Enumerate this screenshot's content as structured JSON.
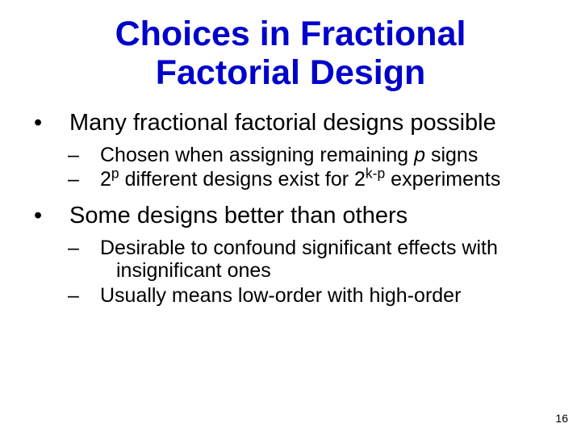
{
  "title_fontsize": 43,
  "title_color": "#0000cc",
  "title_font": "Comic Sans MS",
  "body_fontsize_l1": 29,
  "body_fontsize_l2": 25,
  "body_color": "#000000",
  "background_color": "#ffffff",
  "page_number": "16",
  "title_line1": "Choices in Fractional",
  "title_line2": "Factorial Design",
  "bullets": {
    "b1": "Many fractional factorial designs possible",
    "b1_s1_pre": "Chosen when assigning remaining ",
    "b1_s1_p": "p",
    "b1_s1_post": " signs",
    "b1_s2_a": "2",
    "b1_s2_sup1": "p",
    "b1_s2_b": " different designs exist for 2",
    "b1_s2_sup2": "k-p",
    "b1_s2_c": " experiments",
    "b2": "Some designs better than others",
    "b2_s1": "Desirable to confound significant effects with insignificant ones",
    "b2_s2": "Usually means low-order with high-order"
  },
  "symbols": {
    "bullet": "•",
    "dash": "–"
  }
}
